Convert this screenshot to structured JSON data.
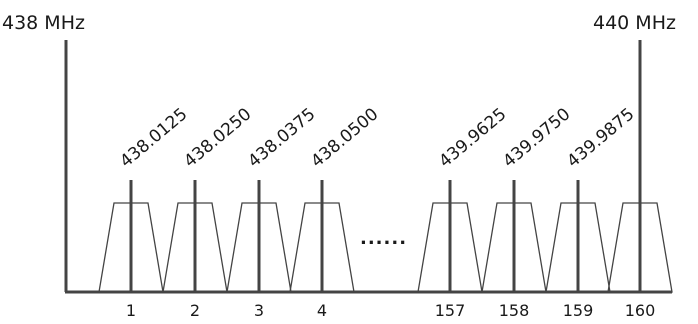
{
  "edges": {
    "left_label": "438 MHz",
    "right_label": "440 MHz"
  },
  "ellipsis": "......",
  "channels": [
    {
      "number": "1",
      "frequency": "438.0125"
    },
    {
      "number": "2",
      "frequency": "438.0250"
    },
    {
      "number": "3",
      "frequency": "438.0375"
    },
    {
      "number": "4",
      "frequency": "438.0500"
    },
    {
      "number": "157",
      "frequency": "439.9625"
    },
    {
      "number": "158",
      "frequency": "439.9750"
    },
    {
      "number": "159",
      "frequency": "439.9875"
    },
    {
      "number": "160",
      "frequency": ""
    }
  ]
}
